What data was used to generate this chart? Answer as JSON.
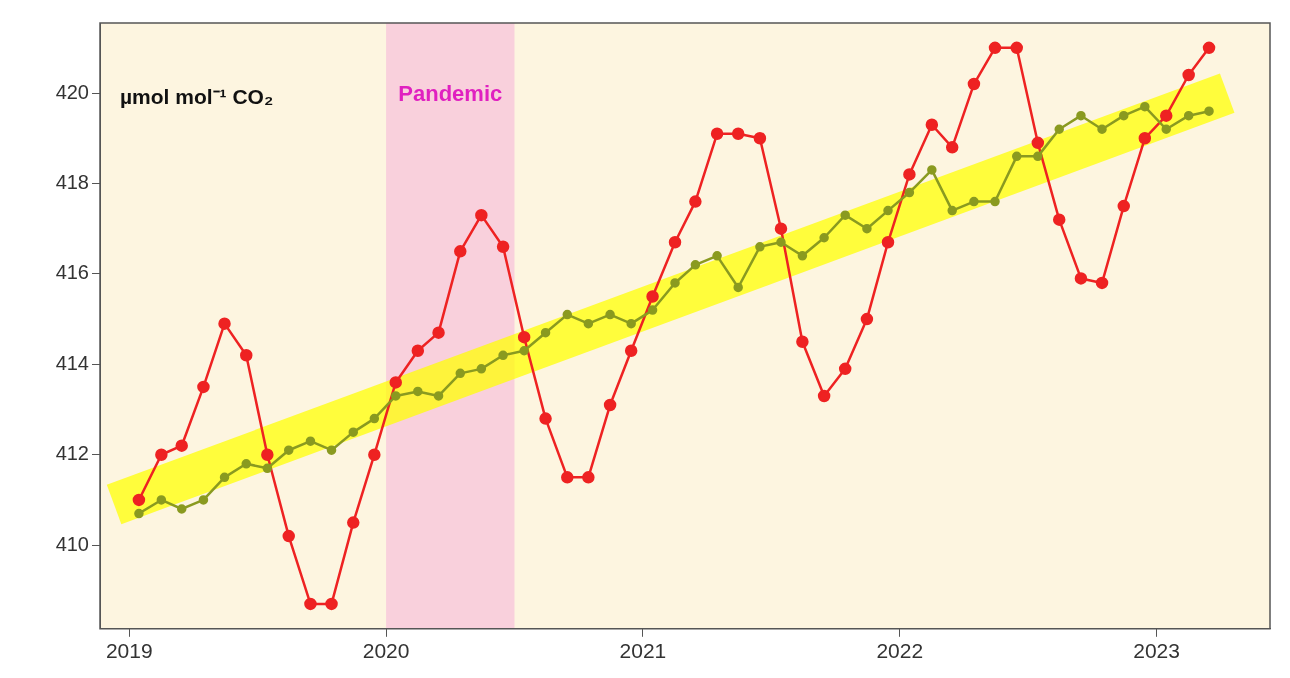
{
  "chart_data": {
    "type": "line",
    "annotations": [
      "µmol mol⁻¹ CO₂"
    ],
    "x": [
      "2019-01-15",
      "2019-02-15",
      "2019-03-15",
      "2019-04-15",
      "2019-05-15",
      "2019-06-15",
      "2019-07-15",
      "2019-08-15",
      "2019-09-15",
      "2019-10-15",
      "2019-11-15",
      "2019-12-15",
      "2020-01-15",
      "2020-02-15",
      "2020-03-15",
      "2020-04-15",
      "2020-05-15",
      "2020-06-15",
      "2020-07-15",
      "2020-08-15",
      "2020-09-15",
      "2020-10-15",
      "2020-11-15",
      "2020-12-15",
      "2021-01-15",
      "2021-02-15",
      "2021-03-15",
      "2021-04-15",
      "2021-05-15",
      "2021-06-15",
      "2021-07-15",
      "2021-08-15",
      "2021-09-15",
      "2021-10-15",
      "2021-11-15",
      "2021-12-15",
      "2022-01-15",
      "2022-02-15",
      "2022-03-15",
      "2022-04-15",
      "2022-05-15",
      "2022-06-15",
      "2022-07-15",
      "2022-08-15",
      "2022-09-15",
      "2022-10-15",
      "2022-11-15",
      "2022-12-15",
      "2023-01-15",
      "2023-02-15",
      "2023-03-15"
    ],
    "series": [
      {
        "color": "#ffff00",
        "x": [
          "2018-12-10",
          "2023-04-10"
        ],
        "values": [
          410.9,
          420.0
        ],
        "marker": "none"
      },
      {
        "color": "#ee2222",
        "marker": "circle",
        "values": [
          411.0,
          412.0,
          412.2,
          413.5,
          414.9,
          414.2,
          412.0,
          410.2,
          408.7,
          408.7,
          410.5,
          412.0,
          413.6,
          414.3,
          414.7,
          416.5,
          417.3,
          416.6,
          414.6,
          412.8,
          411.5,
          411.5,
          413.1,
          414.3,
          415.5,
          416.7,
          417.6,
          419.1,
          419.1,
          419.0,
          417.0,
          414.5,
          413.3,
          413.9,
          415.0,
          416.7,
          418.2,
          419.3,
          418.8,
          420.2,
          421.0,
          421.0,
          418.9,
          417.2,
          415.9,
          415.8,
          417.5,
          419.0,
          419.5,
          420.4,
          421.0
        ]
      },
      {
        "color": "#8a9a20",
        "marker": "circle",
        "values": [
          410.7,
          411.0,
          410.8,
          411.0,
          411.5,
          411.8,
          411.7,
          412.1,
          412.3,
          412.1,
          412.5,
          412.8,
          413.3,
          413.4,
          413.3,
          413.8,
          413.9,
          414.2,
          414.3,
          414.7,
          415.1,
          414.9,
          415.1,
          414.9,
          415.2,
          415.8,
          416.2,
          416.4,
          415.7,
          416.6,
          416.7,
          416.4,
          416.8,
          417.3,
          417.0,
          417.4,
          417.8,
          418.3,
          417.4,
          417.6,
          417.6,
          418.6,
          418.6,
          419.2,
          419.5,
          419.2,
          419.5,
          419.7,
          419.2,
          419.5,
          419.6
        ]
      }
    ],
    "bands": [
      {
        "axis": "x",
        "from": "2020-01-01",
        "to": "2020-07-01",
        "label": "Pandemic",
        "color": "#f9d0dc"
      }
    ],
    "xlim": [
      "2018-11-20",
      "2023-06-10"
    ],
    "xticks": [
      {
        "value": "2019-01-01",
        "label": "2019"
      },
      {
        "value": "2020-01-01",
        "label": "2020"
      },
      {
        "value": "2021-01-01",
        "label": "2021"
      },
      {
        "value": "2022-01-01",
        "label": "2022"
      },
      {
        "value": "2023-01-01",
        "label": "2023"
      }
    ],
    "ylim": [
      408.15,
      421.55
    ],
    "yticks": [
      410,
      412,
      414,
      416,
      418,
      420
    ],
    "grid": false,
    "legend": false
  }
}
